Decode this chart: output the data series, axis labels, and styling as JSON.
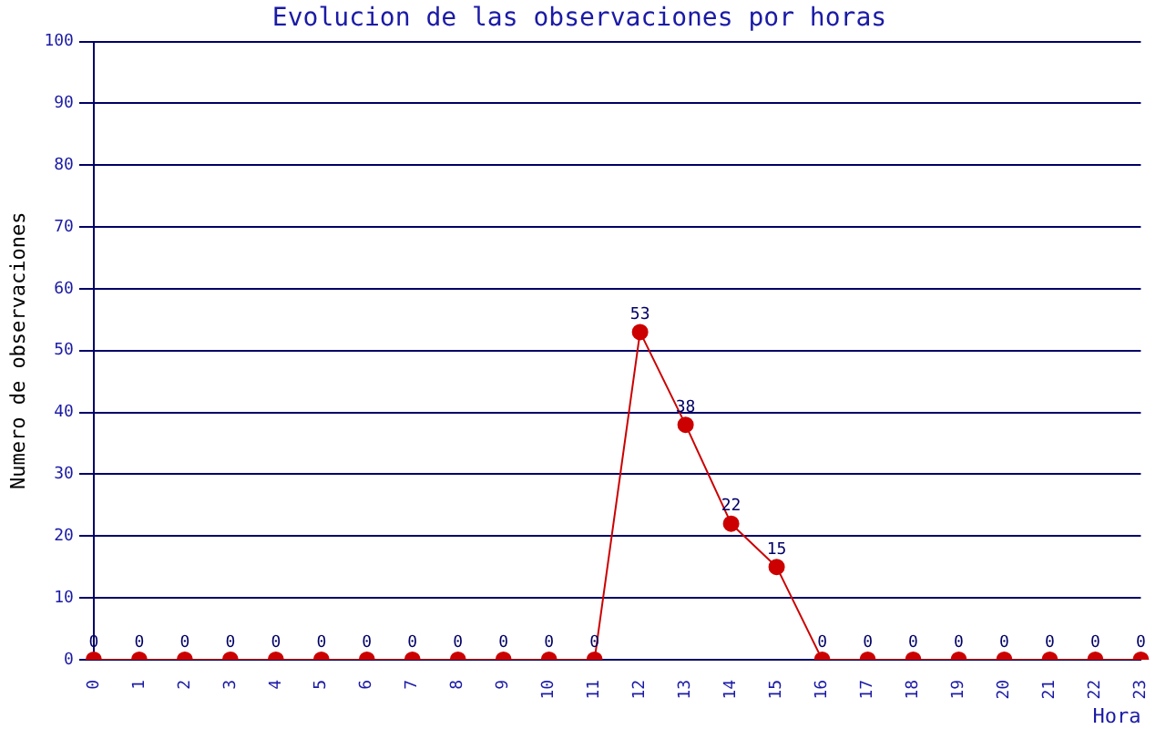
{
  "chart_data": {
    "type": "line",
    "title": "Evolucion de las observaciones por horas",
    "xlabel": "Hora",
    "ylabel": "Numero de observaciones",
    "categories": [
      "0",
      "1",
      "2",
      "3",
      "4",
      "5",
      "6",
      "7",
      "8",
      "9",
      "10",
      "11",
      "12",
      "13",
      "14",
      "15",
      "16",
      "17",
      "18",
      "19",
      "20",
      "21",
      "22",
      "23"
    ],
    "series": [
      {
        "color": "#cc0000",
        "values": [
          0,
          0,
          0,
          0,
          0,
          0,
          0,
          0,
          0,
          0,
          0,
          0,
          53,
          38,
          22,
          15,
          0,
          0,
          0,
          0,
          0,
          0,
          0,
          0
        ]
      }
    ],
    "ylim": [
      0,
      100
    ],
    "yticks": [
      0,
      10,
      20,
      30,
      40,
      50,
      60,
      70,
      80,
      90,
      100
    ],
    "grid": "y",
    "legend": false,
    "marker": "circle",
    "line_style": "solid",
    "data_labels": true
  }
}
